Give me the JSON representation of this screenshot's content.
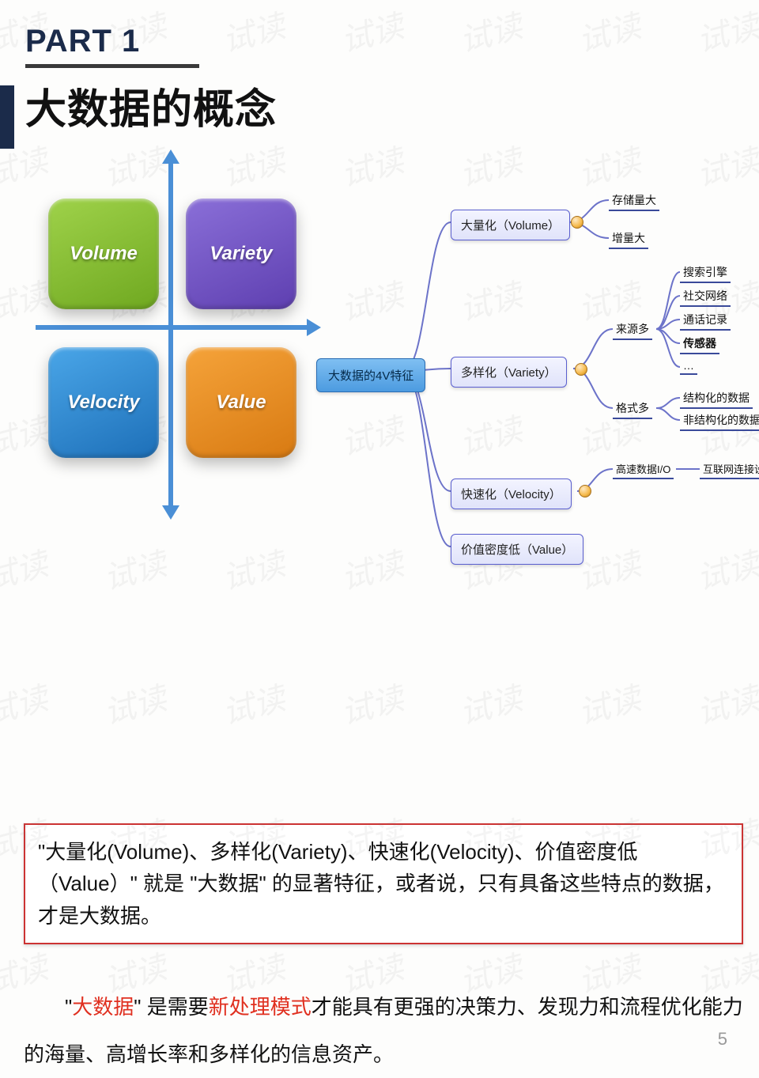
{
  "watermark_text": "试读",
  "header": {
    "part_label": "PART 1",
    "title": "大数据的概念"
  },
  "quadrant": {
    "axis_color": "#4a8fd6",
    "tiles": {
      "top_left": {
        "label": "Volume",
        "bg": "linear-gradient(155deg,#9fd24a,#6fa820)"
      },
      "top_right": {
        "label": "Variety",
        "bg": "linear-gradient(155deg,#8a6fd8,#5e3fb0)"
      },
      "bot_left": {
        "label": "Velocity",
        "bg": "linear-gradient(155deg,#4aa6e8,#1d6fb8)"
      },
      "bot_right": {
        "label": "Value",
        "bg": "linear-gradient(155deg,#f5a33a,#d87a12)"
      }
    }
  },
  "mindmap": {
    "root": "大数据的4V特征",
    "branches": [
      {
        "label": "大量化（Volume）",
        "children": [
          {
            "label": "存储量大",
            "type": "leaf"
          },
          {
            "label": "增量大",
            "type": "leaf"
          }
        ]
      },
      {
        "label": "多样化（Variety）",
        "children": [
          {
            "label": "来源多",
            "type": "sub",
            "children": [
              {
                "label": "搜索引擎",
                "type": "leaf"
              },
              {
                "label": "社交网络",
                "type": "leaf"
              },
              {
                "label": "通话记录",
                "type": "leaf"
              },
              {
                "label": "传感器",
                "type": "leaf",
                "bold": true
              },
              {
                "label": "…",
                "type": "leaf"
              }
            ]
          },
          {
            "label": "格式多",
            "type": "sub",
            "children": [
              {
                "label": "结构化的数据",
                "type": "leaf"
              },
              {
                "label": "非结构化的数据",
                "type": "leaf"
              }
            ]
          }
        ]
      },
      {
        "label": "快速化（Velocity）",
        "children": [
          {
            "label": "高速数据I/O",
            "type": "sub",
            "children": [
              {
                "label": "互联网连接设备数量增长",
                "type": "leaf"
              }
            ]
          }
        ]
      },
      {
        "label": "价值密度低（Value）",
        "children": []
      }
    ]
  },
  "summary_box": "\"大量化(Volume)、多样化(Variety)、快速化(Velocity)、价值密度低（Value）\" 就是 \"大数据\" 的显著特征，或者说，只有具备这些特点的数据，才是大数据。",
  "definition": {
    "pre": "\"",
    "hl1": "大数据",
    "mid1": "\" 是需要",
    "hl2": "新处理模式",
    "post": "才能具有更强的决策力、发现力和流程优化能力的海量、高增长率和多样化的信息资产。"
  },
  "page_number": "5"
}
